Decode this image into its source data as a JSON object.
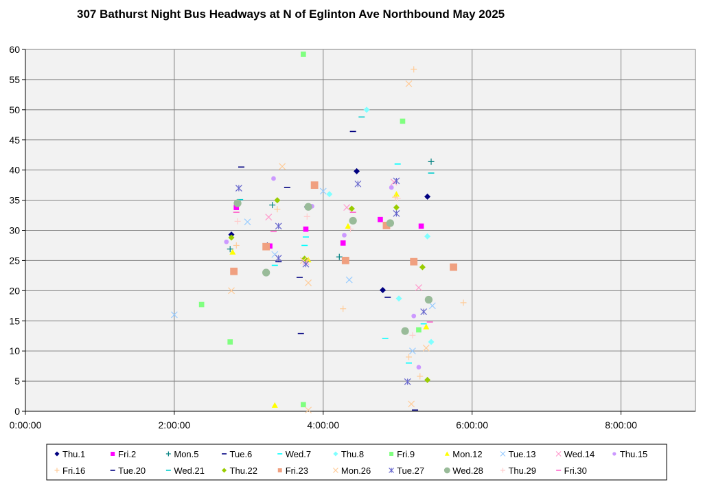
{
  "chart_data": {
    "type": "scatter",
    "title": "307 Bathurst Night Bus Headways at N of Eglinton Ave Northbound May 2025",
    "xlabel": "",
    "ylabel": "",
    "xlim": [
      "0:00:00",
      "9:00:00"
    ],
    "ylim": [
      0,
      60
    ],
    "x_ticks": [
      "0:00:00",
      "2:00:00",
      "4:00:00",
      "6:00:00",
      "8:00:00"
    ],
    "y_ticks": [
      0,
      5,
      10,
      15,
      20,
      25,
      30,
      35,
      40,
      45,
      50,
      55,
      60
    ],
    "grid": true,
    "legend_position": "bottom",
    "series": [
      {
        "name": "Thu.1",
        "color": "#000080",
        "marker": "diamond",
        "points": [
          [
            "2:46:00",
            29.3
          ],
          [
            "3:15:00",
            27.5
          ],
          [
            "3:47:00",
            33.9
          ],
          [
            "4:27:00",
            39.8
          ],
          [
            "4:48:00",
            20.1
          ],
          [
            "5:24:00",
            35.6
          ]
        ]
      },
      {
        "name": "Fri.2",
        "color": "#ff00ff",
        "marker": "square",
        "points": [
          [
            "2:50:00",
            33.8
          ],
          [
            "3:17:00",
            27.4
          ],
          [
            "3:46:00",
            30.2
          ],
          [
            "4:16:00",
            27.9
          ],
          [
            "4:46:00",
            31.8
          ],
          [
            "5:19:00",
            30.7
          ]
        ]
      },
      {
        "name": "Mon.5",
        "color": "#008080",
        "marker": "plus",
        "points": [
          [
            "2:45:00",
            26.9
          ],
          [
            "3:19:00",
            34.2
          ],
          [
            "4:13:00",
            25.6
          ],
          [
            "5:27:00",
            41.4
          ]
        ]
      },
      {
        "name": "Tue.6",
        "color": "#000080",
        "marker": "dash",
        "points": [
          [
            "2:54:00",
            40.5
          ],
          [
            "3:31:00",
            37.1
          ],
          [
            "3:41:00",
            22.2
          ],
          [
            "3:42:00",
            12.9
          ],
          [
            "4:24:00",
            46.4
          ],
          [
            "4:52:00",
            18.9
          ],
          [
            "5:14:00",
            0.2
          ]
        ]
      },
      {
        "name": "Wed.7",
        "color": "#00ffff",
        "marker": "dash",
        "points": [
          [
            "3:21:00",
            24.2
          ],
          [
            "3:45:00",
            27.5
          ],
          [
            "3:46:00",
            28.9
          ],
          [
            "4:50:00",
            12.1
          ],
          [
            "5:00:00",
            41.0
          ],
          [
            "5:09:00",
            8.0
          ],
          [
            "5:21:00",
            14.5
          ]
        ]
      },
      {
        "name": "Thu.8",
        "color": "#80ffff",
        "marker": "diamond",
        "points": [
          [
            "4:05:00",
            36.0
          ],
          [
            "4:35:00",
            50.0
          ],
          [
            "5:01:00",
            18.7
          ],
          [
            "5:24:00",
            29.0
          ],
          [
            "5:27:00",
            11.5
          ]
        ]
      },
      {
        "name": "Fri.9",
        "color": "#80ff80",
        "marker": "square",
        "points": [
          [
            "2:22:00",
            17.7
          ],
          [
            "2:45:00",
            11.5
          ],
          [
            "3:44:00",
            59.2
          ],
          [
            "3:44:00",
            1.1
          ],
          [
            "5:04:00",
            48.1
          ],
          [
            "5:17:00",
            13.5
          ]
        ]
      },
      {
        "name": "Mon.12",
        "color": "#ffff00",
        "marker": "triangle",
        "points": [
          [
            "2:47:00",
            26.4
          ],
          [
            "3:21:00",
            1.0
          ],
          [
            "3:48:00",
            25.1
          ],
          [
            "4:20:00",
            30.7
          ],
          [
            "4:59:00",
            36.0
          ],
          [
            "5:23:00",
            14.0
          ]
        ]
      },
      {
        "name": "Tue.13",
        "color": "#99ccff",
        "marker": "x",
        "points": [
          [
            "2:00:00",
            16.0
          ],
          [
            "2:59:00",
            31.4
          ],
          [
            "3:21:00",
            26.0
          ],
          [
            "4:00:00",
            36.5
          ],
          [
            "4:21:00",
            21.8
          ],
          [
            "5:12:00",
            10.0
          ],
          [
            "5:28:00",
            17.5
          ]
        ]
      },
      {
        "name": "Wed.14",
        "color": "#ff99cc",
        "marker": "x",
        "points": [
          [
            "3:16:00",
            32.2
          ],
          [
            "3:46:00",
            24.8
          ],
          [
            "4:19:00",
            33.8
          ],
          [
            "4:57:00",
            38.0
          ],
          [
            "5:17:00",
            20.5
          ]
        ]
      },
      {
        "name": "Thu.15",
        "color": "#cc99ff",
        "marker": "circle",
        "points": [
          [
            "2:42:00",
            28.1
          ],
          [
            "3:20:00",
            38.6
          ],
          [
            "3:51:00",
            34.0
          ],
          [
            "4:17:00",
            29.2
          ],
          [
            "4:55:00",
            37.1
          ],
          [
            "5:13:00",
            15.8
          ],
          [
            "5:17:00",
            7.3
          ]
        ]
      },
      {
        "name": "Fri.16",
        "color": "#ffcc99",
        "marker": "plus",
        "points": [
          [
            "2:50:00",
            27.5
          ],
          [
            "3:23:00",
            33.5
          ],
          [
            "4:16:00",
            17.0
          ],
          [
            "4:58:00",
            35.5
          ],
          [
            "5:09:00",
            9.0
          ],
          [
            "5:13:00",
            56.7
          ],
          [
            "5:18:00",
            5.8
          ],
          [
            "5:53:00",
            18.0
          ]
        ]
      },
      {
        "name": "Tue.20",
        "color": "#000080",
        "marker": "dash",
        "points": [
          [
            "3:24:00",
            24.8
          ]
        ]
      },
      {
        "name": "Wed.21",
        "color": "#00cccc",
        "marker": "dash",
        "points": [
          [
            "2:53:00",
            35.1
          ],
          [
            "4:31:00",
            48.8
          ],
          [
            "5:27:00",
            39.5
          ]
        ]
      },
      {
        "name": "Thu.22",
        "color": "#99cc00",
        "marker": "diamond",
        "points": [
          [
            "2:46:00",
            28.8
          ],
          [
            "3:23:00",
            35.0
          ],
          [
            "3:45:00",
            25.3
          ],
          [
            "4:23:00",
            33.6
          ],
          [
            "4:59:00",
            33.8
          ],
          [
            "5:20:00",
            23.9
          ],
          [
            "5:24:00",
            5.2
          ]
        ]
      },
      {
        "name": "Fri.23",
        "color": "#f0a080",
        "marker": "square",
        "points": [
          [
            "2:48:00",
            23.2
          ],
          [
            "3:14:00",
            27.3
          ],
          [
            "3:53:00",
            37.5
          ],
          [
            "4:18:00",
            25.0
          ],
          [
            "4:51:00",
            30.8
          ],
          [
            "5:13:00",
            24.8
          ],
          [
            "5:45:00",
            23.9
          ]
        ]
      },
      {
        "name": "Mon.26",
        "color": "#ffcc99",
        "marker": "x",
        "points": [
          [
            "2:46:00",
            20.0
          ],
          [
            "3:27:00",
            40.6
          ],
          [
            "3:44:00",
            25.0
          ],
          [
            "3:48:00",
            21.3
          ],
          [
            "3:48:00",
            0.2
          ],
          [
            "5:09:00",
            54.3
          ],
          [
            "5:23:00",
            10.5
          ],
          [
            "5:11:00",
            1.2
          ]
        ]
      },
      {
        "name": "Tue.27",
        "color": "#6666cc",
        "marker": "asterisk",
        "points": [
          [
            "2:52:00",
            37.0
          ],
          [
            "3:24:00",
            30.7
          ],
          [
            "3:24:00",
            25.4
          ],
          [
            "3:46:00",
            24.4
          ],
          [
            "4:28:00",
            37.7
          ],
          [
            "4:59:00",
            38.2
          ],
          [
            "4:59:00",
            32.8
          ],
          [
            "5:08:00",
            4.9
          ],
          [
            "5:21:00",
            16.5
          ]
        ]
      },
      {
        "name": "Wed.28",
        "color": "#99bb99",
        "marker": "circle",
        "points": [
          [
            "2:51:00",
            34.5
          ],
          [
            "3:14:00",
            23.0
          ],
          [
            "3:48:00",
            33.9
          ],
          [
            "4:24:00",
            31.6
          ],
          [
            "4:54:00",
            31.2
          ],
          [
            "5:06:00",
            13.3
          ],
          [
            "5:25:00",
            18.5
          ]
        ]
      },
      {
        "name": "Thu.29",
        "color": "#ffcccc",
        "marker": "plus",
        "points": [
          [
            "2:51:00",
            31.5
          ],
          [
            "3:47:00",
            32.3
          ],
          [
            "4:22:00",
            30.2
          ],
          [
            "5:00:00",
            35.3
          ],
          [
            "5:12:00",
            12.6
          ]
        ]
      },
      {
        "name": "Fri.30",
        "color": "#ff66cc",
        "marker": "dash",
        "points": [
          [
            "2:50:00",
            33.0
          ],
          [
            "3:20:00",
            29.8
          ],
          [
            "4:24:00",
            33.0
          ],
          [
            "5:26:00",
            14.8
          ]
        ]
      }
    ]
  }
}
